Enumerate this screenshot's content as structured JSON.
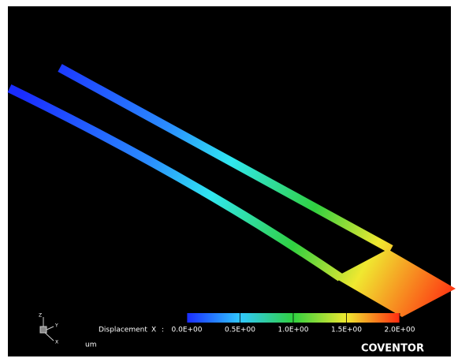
{
  "legend": {
    "label": "Displacement",
    "component": "X",
    "separator": ":",
    "range": [
      0,
      2
    ],
    "ticks": [
      {
        "value": 0,
        "label": "0.0E+00"
      },
      {
        "value": 0.5,
        "label": "0.5E+00"
      },
      {
        "value": 1,
        "label": "1.0E+00"
      },
      {
        "value": 1.5,
        "label": "1.5E+00"
      },
      {
        "value": 2,
        "label": "2.0E+00"
      }
    ],
    "unit": "um"
  },
  "axes": {
    "z": "Z",
    "y": "Y",
    "x": "X"
  },
  "logo": "COVENTOR"
}
